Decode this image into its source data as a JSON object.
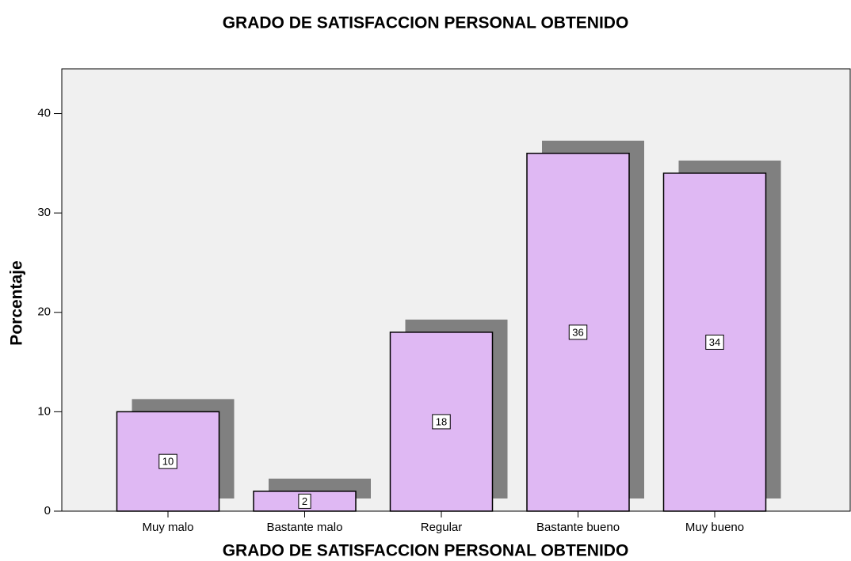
{
  "chart_data": {
    "type": "bar",
    "title": "GRADO DE SATISFACCION PERSONAL OBTENIDO",
    "x_label": "GRADO DE SATISFACCION PERSONAL OBTENIDO",
    "y_label": "Porcentaje",
    "categories": [
      "Muy malo",
      "Bastante malo",
      "Regular",
      "Bastante bueno",
      "Muy bueno"
    ],
    "values": [
      10,
      2,
      18,
      36,
      34
    ],
    "color": "#dfb8f3",
    "ylim": [
      0,
      44.5
    ],
    "yticks": [
      0,
      10,
      20,
      30,
      40
    ],
    "grid": false
  }
}
